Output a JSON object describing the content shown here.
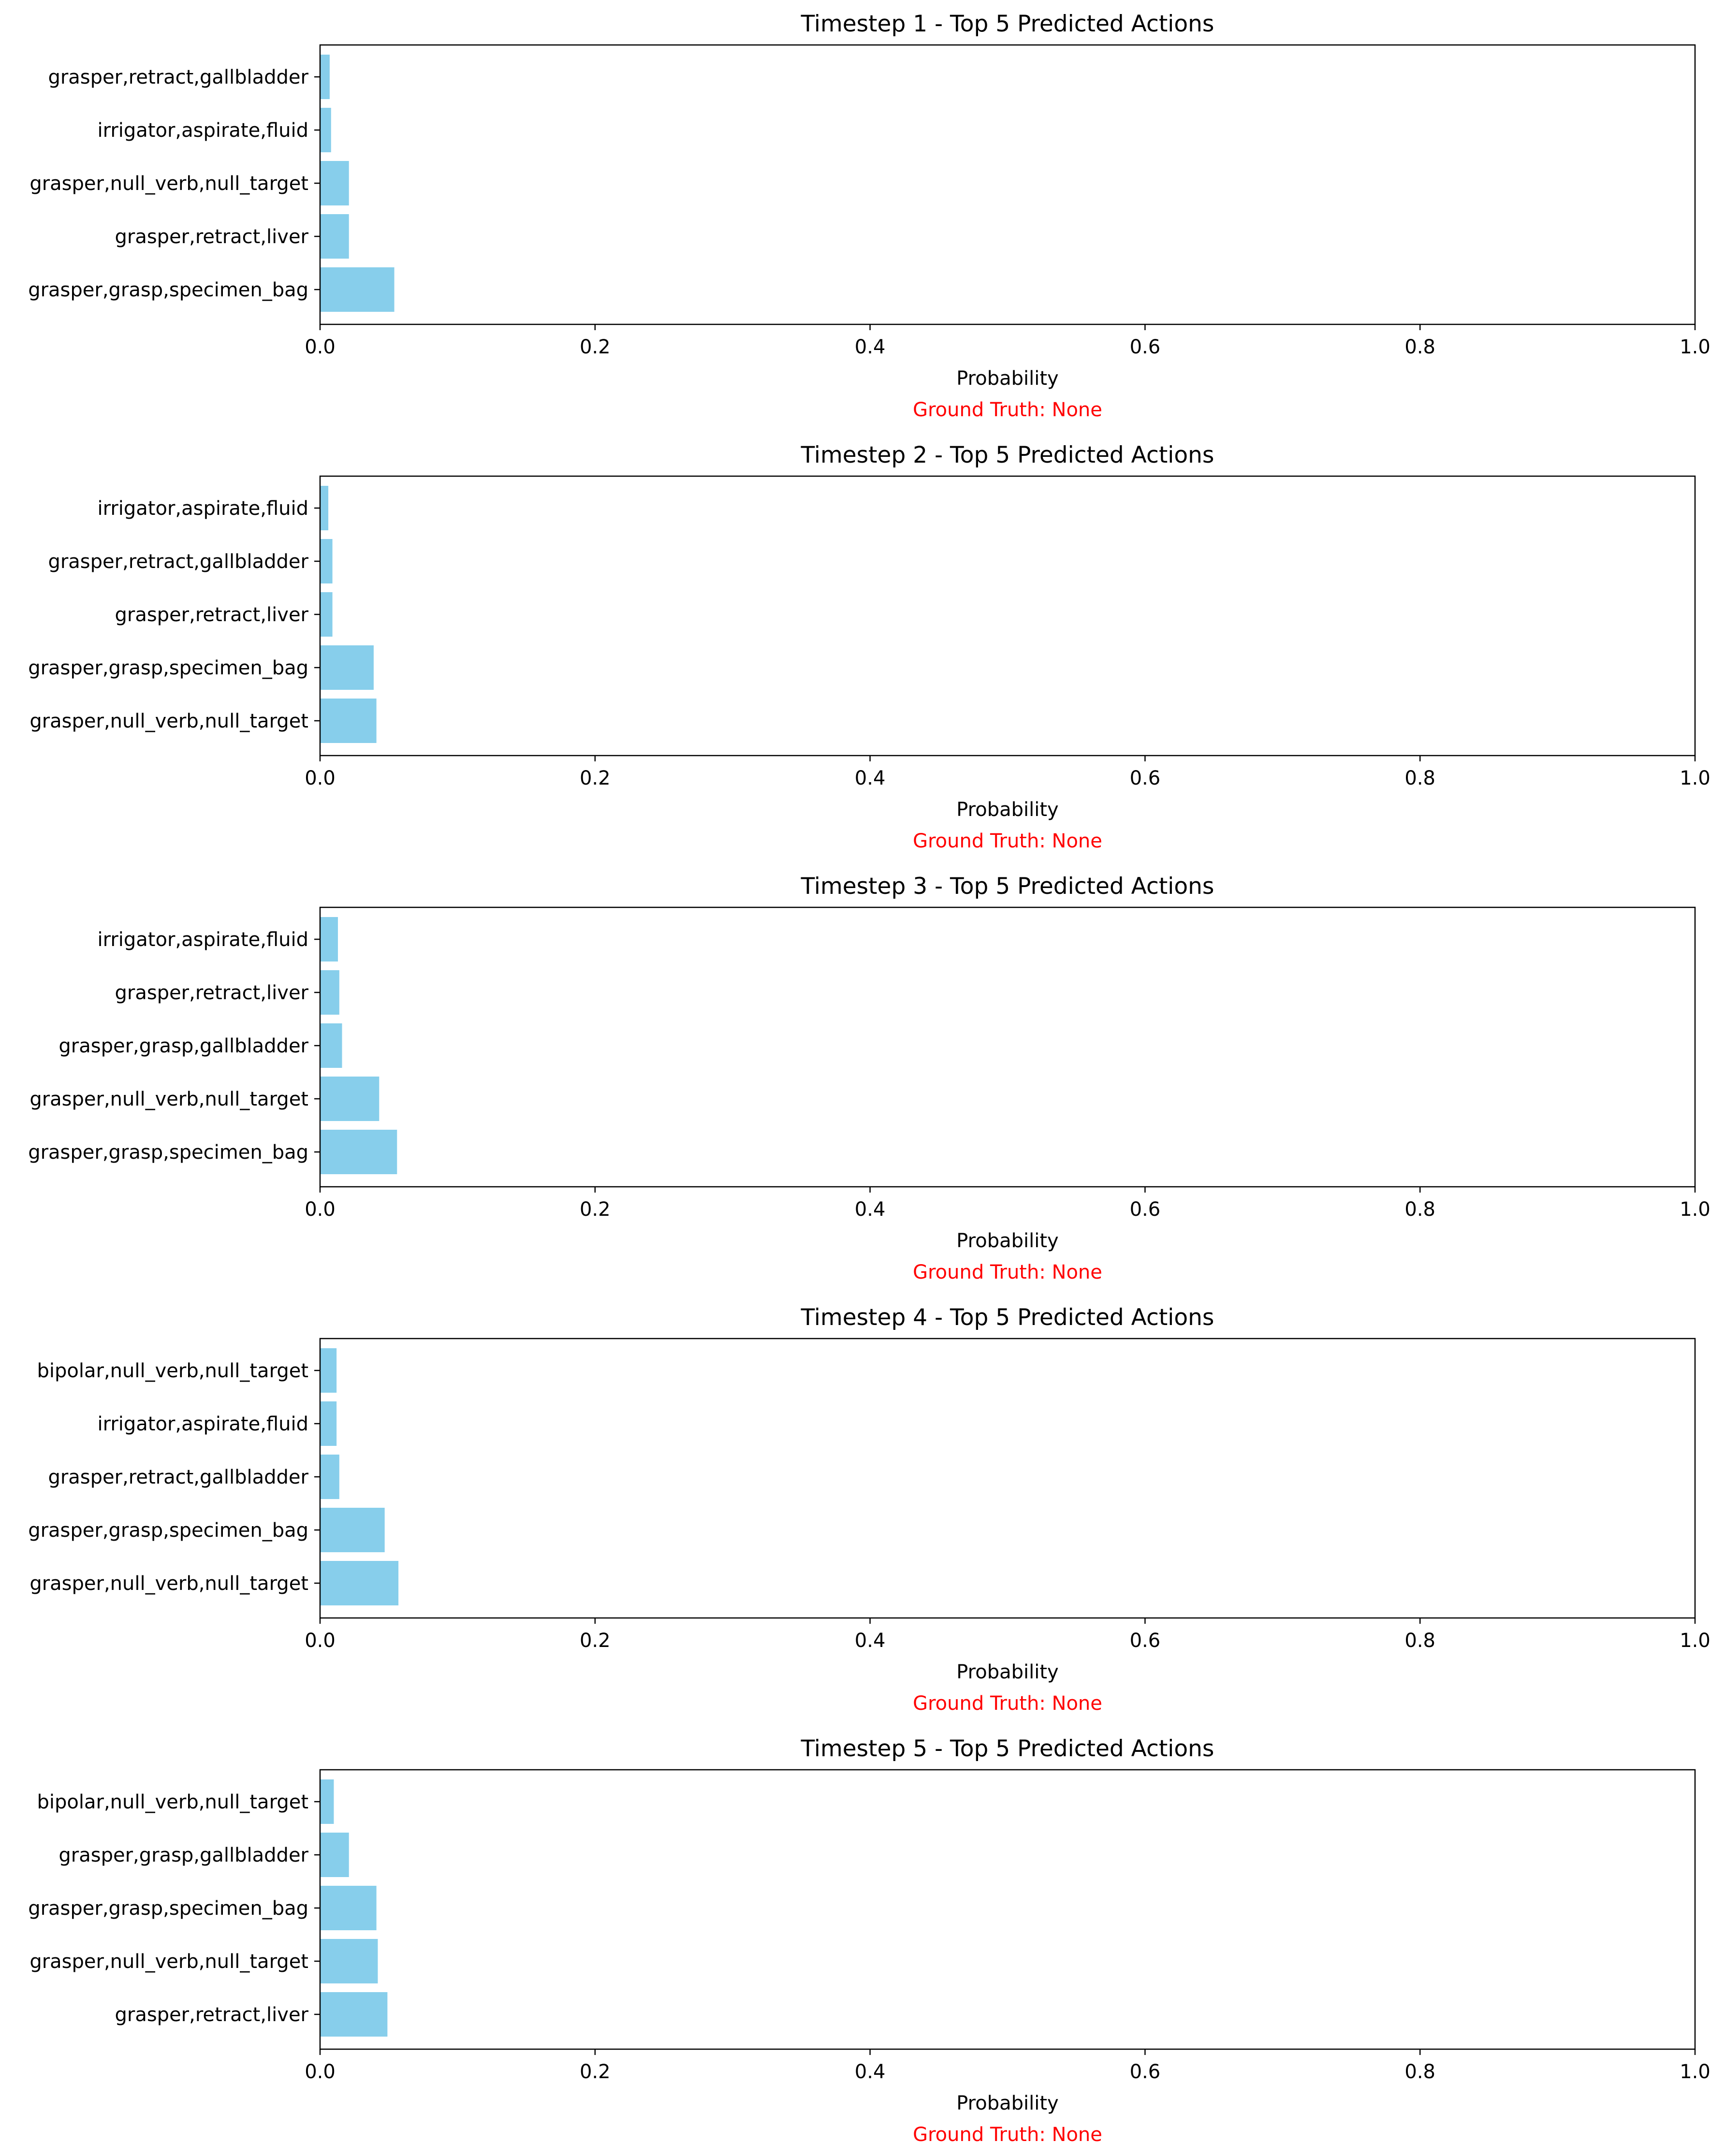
{
  "chart_data": [
    {
      "type": "bar",
      "orientation": "horizontal",
      "title": "Timestep 1 - Top 5 Predicted Actions",
      "xlabel": "Probability",
      "ylabel": "",
      "xlim": [
        0,
        1
      ],
      "xticks": [
        "0.0",
        "0.2",
        "0.4",
        "0.6",
        "0.8",
        "1.0"
      ],
      "grid": false,
      "bar_color": "#87CEEB",
      "categories": [
        "grasper,grasp,specimen_bag",
        "grasper,retract,liver",
        "grasper,null_verb,null_target",
        "irrigator,aspirate,fluid",
        "grasper,retract,gallbladder"
      ],
      "values": [
        0.054,
        0.021,
        0.021,
        0.008,
        0.007
      ],
      "annotation": "Ground Truth: None",
      "annotation_color": "#ff0000"
    },
    {
      "type": "bar",
      "orientation": "horizontal",
      "title": "Timestep 2 - Top 5 Predicted Actions",
      "xlabel": "Probability",
      "ylabel": "",
      "xlim": [
        0,
        1
      ],
      "xticks": [
        "0.0",
        "0.2",
        "0.4",
        "0.6",
        "0.8",
        "1.0"
      ],
      "grid": false,
      "bar_color": "#87CEEB",
      "categories": [
        "grasper,null_verb,null_target",
        "grasper,grasp,specimen_bag",
        "grasper,retract,liver",
        "grasper,retract,gallbladder",
        "irrigator,aspirate,fluid"
      ],
      "values": [
        0.041,
        0.039,
        0.009,
        0.009,
        0.006
      ],
      "annotation": "Ground Truth: None",
      "annotation_color": "#ff0000"
    },
    {
      "type": "bar",
      "orientation": "horizontal",
      "title": "Timestep 3 - Top 5 Predicted Actions",
      "xlabel": "Probability",
      "ylabel": "",
      "xlim": [
        0,
        1
      ],
      "xticks": [
        "0.0",
        "0.2",
        "0.4",
        "0.6",
        "0.8",
        "1.0"
      ],
      "grid": false,
      "bar_color": "#87CEEB",
      "categories": [
        "grasper,grasp,specimen_bag",
        "grasper,null_verb,null_target",
        "grasper,grasp,gallbladder",
        "grasper,retract,liver",
        "irrigator,aspirate,fluid"
      ],
      "values": [
        0.056,
        0.043,
        0.016,
        0.014,
        0.013
      ],
      "annotation": "Ground Truth: None",
      "annotation_color": "#ff0000"
    },
    {
      "type": "bar",
      "orientation": "horizontal",
      "title": "Timestep 4 - Top 5 Predicted Actions",
      "xlabel": "Probability",
      "ylabel": "",
      "xlim": [
        0,
        1
      ],
      "xticks": [
        "0.0",
        "0.2",
        "0.4",
        "0.6",
        "0.8",
        "1.0"
      ],
      "grid": false,
      "bar_color": "#87CEEB",
      "categories": [
        "grasper,null_verb,null_target",
        "grasper,grasp,specimen_bag",
        "grasper,retract,gallbladder",
        "irrigator,aspirate,fluid",
        "bipolar,null_verb,null_target"
      ],
      "values": [
        0.057,
        0.047,
        0.014,
        0.012,
        0.012
      ],
      "annotation": "Ground Truth: None",
      "annotation_color": "#ff0000"
    },
    {
      "type": "bar",
      "orientation": "horizontal",
      "title": "Timestep 5 - Top 5 Predicted Actions",
      "xlabel": "Probability",
      "ylabel": "",
      "xlim": [
        0,
        1
      ],
      "xticks": [
        "0.0",
        "0.2",
        "0.4",
        "0.6",
        "0.8",
        "1.0"
      ],
      "grid": false,
      "bar_color": "#87CEEB",
      "categories": [
        "grasper,retract,liver",
        "grasper,null_verb,null_target",
        "grasper,grasp,specimen_bag",
        "grasper,grasp,gallbladder",
        "bipolar,null_verb,null_target"
      ],
      "values": [
        0.049,
        0.042,
        0.041,
        0.021,
        0.01
      ],
      "annotation": "Ground Truth: None",
      "annotation_color": "#ff0000"
    }
  ]
}
